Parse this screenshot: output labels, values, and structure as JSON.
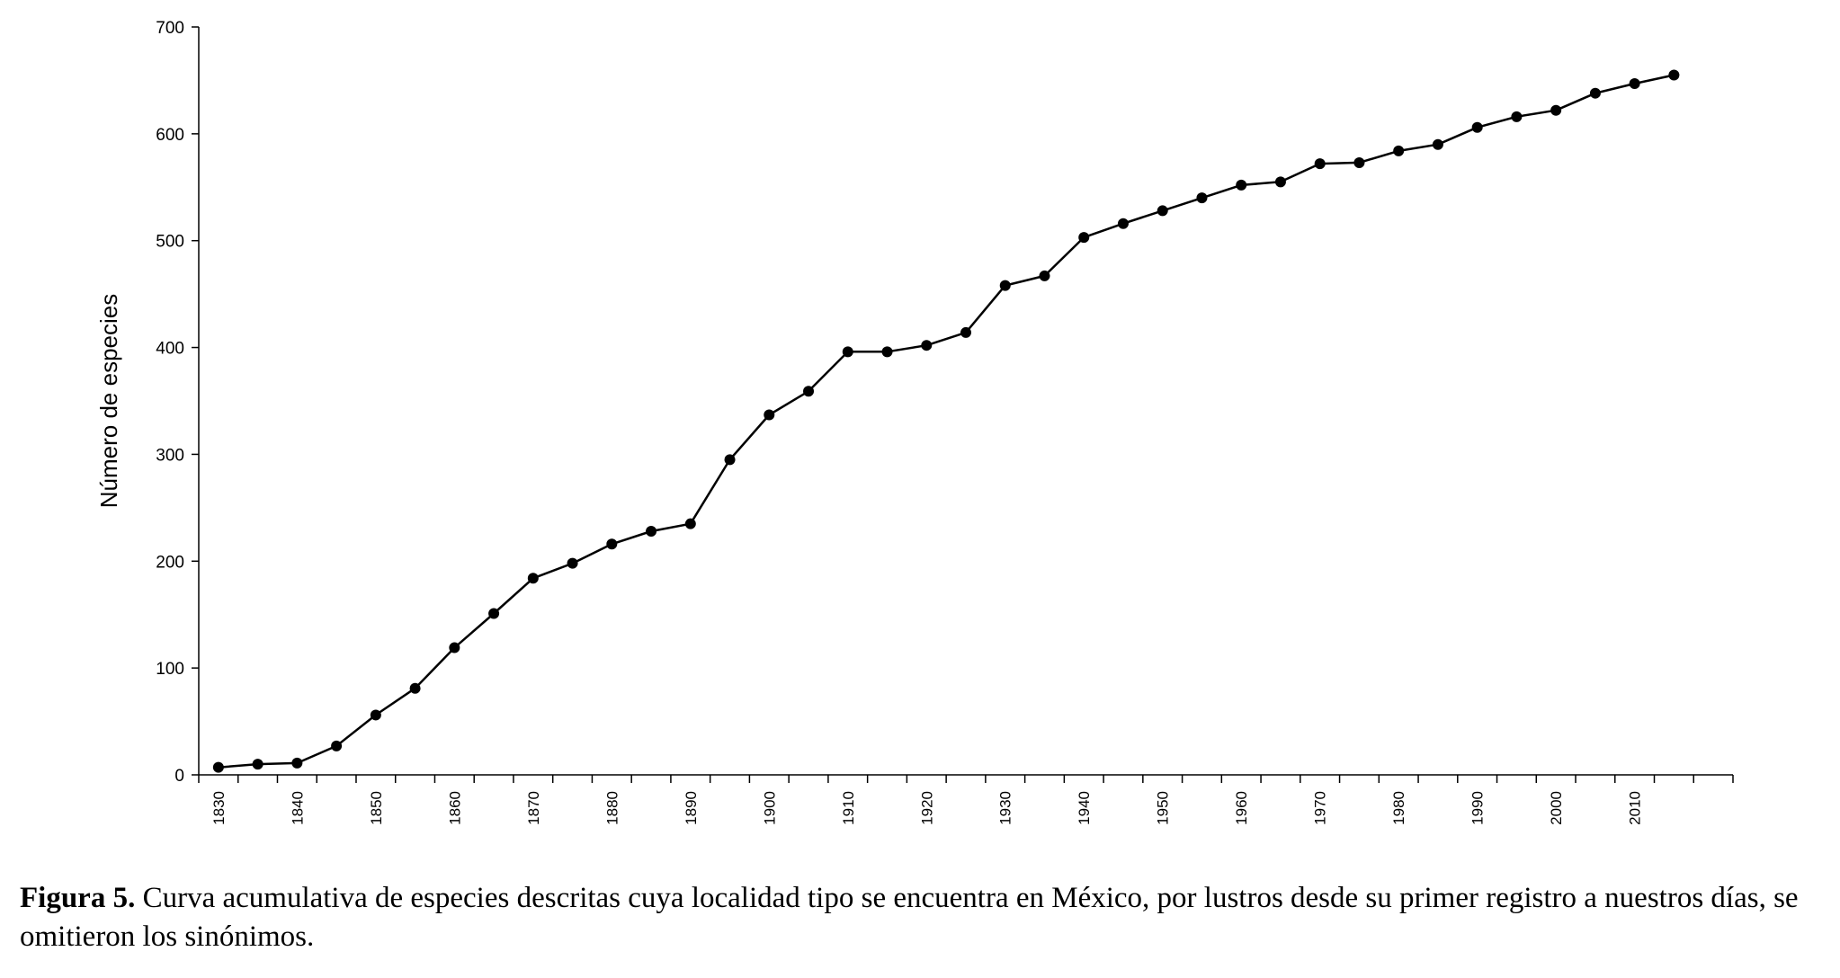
{
  "chart_data": {
    "type": "line",
    "ylabel": "Número de especies",
    "xlabel": "",
    "ylim": [
      0,
      700
    ],
    "yticks": [
      0,
      100,
      200,
      300,
      400,
      500,
      600,
      700
    ],
    "xticks": [
      1830,
      1840,
      1850,
      1860,
      1870,
      1880,
      1890,
      1900,
      1910,
      1920,
      1930,
      1940,
      1950,
      1960,
      1970,
      1980,
      1990,
      2000,
      2010
    ],
    "xlim": [
      1827.5,
      2022.5
    ],
    "grid": false,
    "legend": "none",
    "series": [
      {
        "x": [
          1830,
          1835,
          1840,
          1845,
          1850,
          1855,
          1860,
          1865,
          1870,
          1875,
          1880,
          1885,
          1890,
          1895,
          1900,
          1905,
          1910,
          1915,
          1920,
          1925,
          1930,
          1935,
          1940,
          1945,
          1950,
          1955,
          1960,
          1965,
          1970,
          1975,
          1980,
          1985,
          1990,
          1995,
          2000,
          2005,
          2010,
          2015
        ],
        "values": [
          7,
          10,
          11,
          27,
          56,
          81,
          119,
          151,
          184,
          198,
          216,
          228,
          235,
          295,
          337,
          359,
          396,
          396,
          402,
          414,
          458,
          467,
          503,
          516,
          528,
          540,
          552,
          555,
          572,
          573,
          584,
          590,
          606,
          616,
          622,
          638,
          647,
          655
        ],
        "color": "#000000"
      }
    ]
  },
  "caption": {
    "label": "Figura 5.",
    "text": " Curva acumulativa de especies descritas cuya localidad tipo se encuentra en México, por lustros desde su primer registro a nuestros días, se omitieron los sinónimos."
  }
}
